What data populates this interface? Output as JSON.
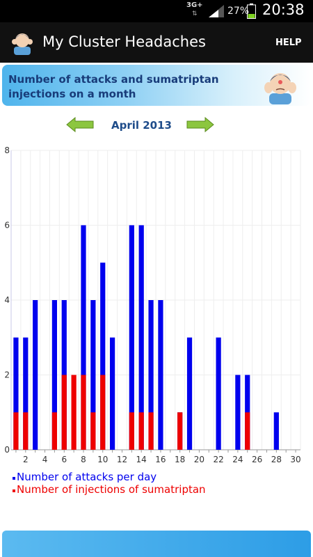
{
  "status_bar": {
    "network": "3G+",
    "battery_percent": "27%",
    "time": "20:38"
  },
  "app_bar": {
    "title": "My Cluster Headaches",
    "help_label": "HELP"
  },
  "banner": {
    "line1": "Number of attacks and sumatriptan",
    "line2": "injections on a month"
  },
  "month_nav": {
    "label": "April 2013",
    "prev_icon": "left-arrow-icon",
    "next_icon": "right-arrow-icon"
  },
  "colors": {
    "attacks": "#0000ee",
    "injections": "#ee0000",
    "banner_text": "#183c7a",
    "month_text": "#1e4c8a"
  },
  "chart_data": {
    "type": "bar",
    "title": "",
    "xlabel": "",
    "ylabel": "",
    "ylim": [
      0,
      8
    ],
    "y_ticks": [
      "0",
      "2",
      "4",
      "6",
      "8"
    ],
    "x_ticks": [
      "2",
      "4",
      "6",
      "8",
      "10",
      "12",
      "14",
      "16",
      "18",
      "20",
      "22",
      "24",
      "26",
      "28",
      "30"
    ],
    "categories": [
      1,
      2,
      3,
      4,
      5,
      6,
      7,
      8,
      9,
      10,
      11,
      12,
      13,
      14,
      15,
      16,
      17,
      18,
      19,
      20,
      21,
      22,
      23,
      24,
      25,
      26,
      27,
      28,
      29,
      30
    ],
    "grid": true,
    "legend_position": "bottom-left",
    "series": [
      {
        "name": "Number of attacks per day",
        "values": [
          3,
          3,
          4,
          0,
          4,
          4,
          0,
          6,
          4,
          5,
          3,
          0,
          6,
          6,
          4,
          4,
          0,
          1,
          3,
          0,
          0,
          3,
          0,
          2,
          2,
          0,
          0,
          1,
          0,
          0
        ]
      },
      {
        "name": "Number of injections of sumatriptan",
        "values": [
          1,
          1,
          0,
          0,
          1,
          2,
          2,
          2,
          1,
          2,
          0,
          0,
          1,
          1,
          1,
          0,
          0,
          1,
          0,
          0,
          0,
          0,
          0,
          0,
          1,
          0,
          0,
          0,
          0,
          0
        ]
      }
    ]
  }
}
